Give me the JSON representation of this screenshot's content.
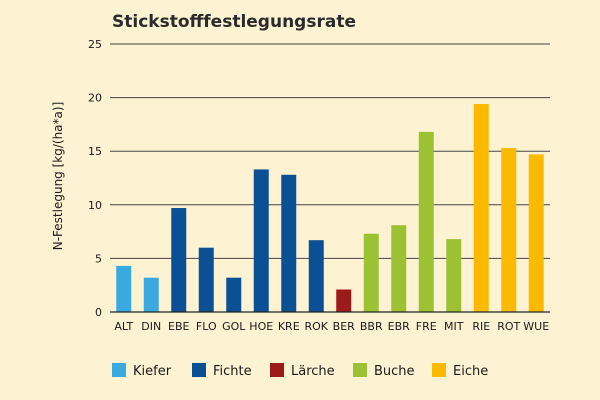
{
  "chart_data": {
    "type": "bar",
    "title": "Stickstofffestlegungsrate",
    "xlabel": "",
    "ylabel": "N-Festlegung [kg/(ha*a)]",
    "ylim": [
      0,
      25
    ],
    "yticks": [
      0,
      5,
      10,
      15,
      20,
      25
    ],
    "grid": true,
    "legend_position": "bottom",
    "categories": [
      "ALT",
      "DIN",
      "EBE",
      "FLO",
      "GOL",
      "HOE",
      "KRE",
      "ROK",
      "BER",
      "BBR",
      "EBR",
      "FRE",
      "MIT",
      "RIE",
      "ROT",
      "WUE"
    ],
    "values": [
      4.3,
      3.2,
      9.7,
      6.0,
      3.2,
      13.3,
      12.8,
      6.7,
      2.1,
      7.3,
      8.1,
      16.8,
      6.8,
      19.4,
      15.3,
      14.7
    ],
    "groups": [
      "Kiefer",
      "Kiefer",
      "Fichte",
      "Fichte",
      "Fichte",
      "Fichte",
      "Fichte",
      "Fichte",
      "Lärche",
      "Buche",
      "Buche",
      "Buche",
      "Buche",
      "Eiche",
      "Eiche",
      "Eiche"
    ],
    "legend": [
      {
        "name": "Kiefer",
        "color": "#3aa9e0"
      },
      {
        "name": "Fichte",
        "color": "#0b4f94"
      },
      {
        "name": "Lärche",
        "color": "#9b1b1b"
      },
      {
        "name": "Buche",
        "color": "#9cc234"
      },
      {
        "name": "Eiche",
        "color": "#fbb900"
      }
    ]
  }
}
